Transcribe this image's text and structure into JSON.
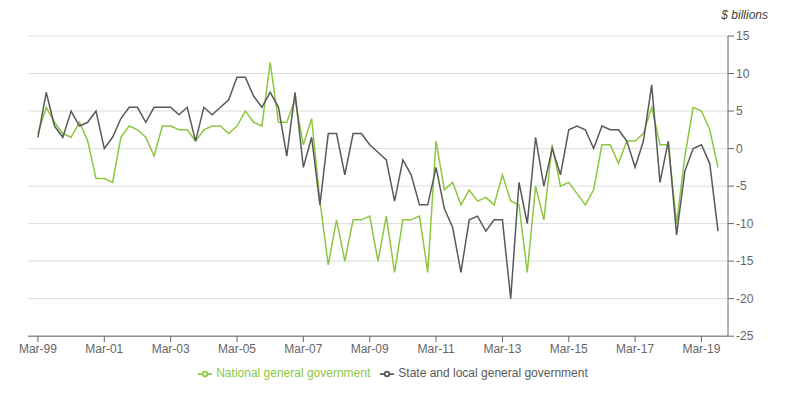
{
  "chart_data": {
    "type": "line",
    "ylabel": "$ billions",
    "x": [
      1999,
      1999.25,
      1999.5,
      1999.75,
      2000,
      2000.25,
      2000.5,
      2000.75,
      2001,
      2001.25,
      2001.5,
      2001.75,
      2002,
      2002.25,
      2002.5,
      2002.75,
      2003,
      2003.25,
      2003.5,
      2003.75,
      2004,
      2004.25,
      2004.5,
      2004.75,
      2005,
      2005.25,
      2005.5,
      2005.75,
      2006,
      2006.25,
      2006.5,
      2006.75,
      2007,
      2007.25,
      2007.5,
      2007.75,
      2008,
      2008.25,
      2008.5,
      2008.75,
      2009,
      2009.25,
      2009.5,
      2009.75,
      2010,
      2010.25,
      2010.5,
      2010.75,
      2011,
      2011.25,
      2011.5,
      2011.75,
      2012,
      2012.25,
      2012.5,
      2012.75,
      2013,
      2013.25,
      2013.5,
      2013.75,
      2014,
      2014.25,
      2014.5,
      2014.75,
      2015,
      2015.25,
      2015.5,
      2015.75,
      2016,
      2016.25,
      2016.5,
      2016.75,
      2017,
      2017.25,
      2017.5,
      2017.75,
      2018,
      2018.25,
      2018.5,
      2018.75,
      2019,
      2019.25,
      2019.5
    ],
    "xlim": [
      1998.7,
      2019.8
    ],
    "xticks": [
      {
        "value": 1999,
        "label": "Mar-99"
      },
      {
        "value": 2001,
        "label": "Mar-01"
      },
      {
        "value": 2003,
        "label": "Mar-03"
      },
      {
        "value": 2005,
        "label": "Mar-05"
      },
      {
        "value": 2007,
        "label": "Mar-07"
      },
      {
        "value": 2009,
        "label": "Mar-09"
      },
      {
        "value": 2011,
        "label": "Mar-11"
      },
      {
        "value": 2013,
        "label": "Mar-13"
      },
      {
        "value": 2015,
        "label": "Mar-15"
      },
      {
        "value": 2017,
        "label": "Mar-17"
      },
      {
        "value": 2019,
        "label": "Mar-19"
      }
    ],
    "ylim": [
      -25,
      15
    ],
    "yticks": [
      -25,
      -20,
      -15,
      -10,
      -5,
      0,
      5,
      10,
      15
    ],
    "grid": "y",
    "legend": "bottom",
    "series": [
      {
        "name": "National general government",
        "color": "#8DC63F",
        "values": [
          2.0,
          5.5,
          3.5,
          2.0,
          1.5,
          3.5,
          1.0,
          -4.0,
          -4.0,
          -4.5,
          1.5,
          3.0,
          2.5,
          1.5,
          -1.0,
          3.0,
          3.0,
          2.5,
          2.5,
          1.0,
          2.5,
          3.0,
          3.0,
          2.0,
          3.0,
          5.0,
          3.5,
          3.0,
          11.5,
          3.5,
          3.5,
          6.5,
          0.5,
          4.0,
          -7.0,
          -15.5,
          -9.5,
          -15.0,
          -9.5,
          -9.5,
          -9.0,
          -15.0,
          -9.0,
          -16.5,
          -9.5,
          -9.5,
          -9.0,
          -16.5,
          1.0,
          -5.5,
          -4.5,
          -7.5,
          -5.5,
          -7.0,
          -6.5,
          -7.5,
          -3.5,
          -7.0,
          -7.5,
          -16.5,
          -5.0,
          -9.5,
          0.5,
          -5.0,
          -4.5,
          -6.0,
          -7.5,
          -5.5,
          0.5,
          0.5,
          -2.0,
          1.0,
          1.0,
          2.0,
          5.5,
          0.5,
          0.5,
          -10.0,
          -1.0,
          5.5,
          5.0,
          2.5,
          -2.5
        ]
      },
      {
        "name": "State and local general government",
        "color": "#595959",
        "values": [
          1.5,
          7.5,
          3.0,
          1.5,
          5.0,
          3.0,
          3.5,
          5.0,
          0.0,
          1.5,
          4.0,
          5.5,
          5.5,
          3.5,
          5.5,
          5.5,
          5.5,
          4.5,
          5.5,
          1.0,
          5.5,
          4.5,
          5.5,
          6.5,
          9.5,
          9.5,
          7.0,
          5.5,
          7.5,
          5.5,
          -1.0,
          7.5,
          -2.5,
          1.5,
          -7.5,
          2.0,
          2.0,
          -3.5,
          2.0,
          2.0,
          0.5,
          -0.5,
          -1.5,
          -7.0,
          -1.5,
          -3.5,
          -7.5,
          -7.5,
          -2.5,
          -8.0,
          -10.5,
          -16.5,
          -9.5,
          -9.0,
          -11.0,
          -9.5,
          -9.5,
          -20.0,
          -4.5,
          -10.0,
          1.5,
          -5.0,
          0.0,
          -3.5,
          2.5,
          3.0,
          2.5,
          0.0,
          3.0,
          2.5,
          2.5,
          1.0,
          -2.5,
          1.0,
          8.5,
          -4.5,
          1.0,
          -11.5,
          -3.0,
          0.0,
          0.5,
          -2.0,
          -11.0
        ]
      }
    ]
  }
}
